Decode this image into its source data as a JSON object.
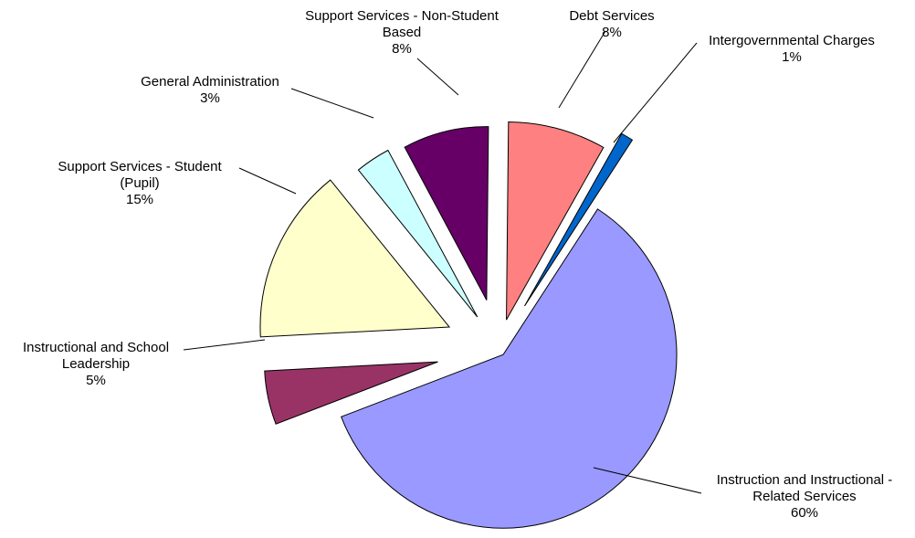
{
  "chart_data": {
    "type": "pie",
    "title": "",
    "exploded": true,
    "slices": [
      {
        "label": "Instruction and Instructional - Related Services",
        "label_lines": [
          "Instruction and Instructional -",
          "Related Services"
        ],
        "percent_text": "60%",
        "value": 60,
        "color": "#9999ff"
      },
      {
        "label": "Instructional and School Leadership",
        "label_lines": [
          "Instructional and School",
          "Leadership"
        ],
        "percent_text": "5%",
        "value": 5,
        "color": "#993366"
      },
      {
        "label": "Support Services - Student (Pupil)",
        "label_lines": [
          "Support Services - Student",
          "(Pupil)"
        ],
        "percent_text": "15%",
        "value": 15,
        "color": "#ffffcc"
      },
      {
        "label": "General Administration",
        "label_lines": [
          "General Administration"
        ],
        "percent_text": "3%",
        "value": 3,
        "color": "#ccffff"
      },
      {
        "label": "Support Services - Non-Student Based",
        "label_lines": [
          "Support Services - Non-Student",
          "Based"
        ],
        "percent_text": "8%",
        "value": 8,
        "color": "#660066"
      },
      {
        "label": "Debt Services",
        "label_lines": [
          "Debt Services"
        ],
        "percent_text": "8%",
        "value": 8,
        "color": "#ff8080"
      },
      {
        "label": "Intergovernmental Charges",
        "label_lines": [
          "Intergovernmental Charges"
        ],
        "percent_text": "1%",
        "value": 1,
        "color": "#0066cc"
      }
    ]
  }
}
